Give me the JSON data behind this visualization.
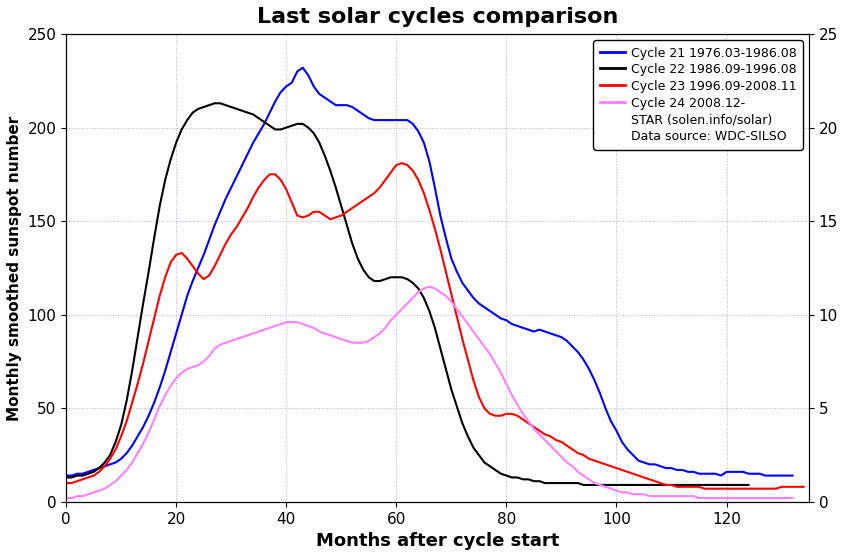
{
  "title": "Last solar cycles comparison",
  "xlabel": "Months after cycle start",
  "ylabel": "Monthly smoothed sunspot number",
  "xlim": [
    0,
    135
  ],
  "ylim": [
    0,
    250
  ],
  "ylim_right": [
    0,
    25
  ],
  "yticks_left": [
    0,
    50,
    100,
    150,
    200,
    250
  ],
  "yticks_right": [
    0,
    5,
    10,
    15,
    20,
    25
  ],
  "xticks": [
    0,
    20,
    40,
    60,
    80,
    100,
    120
  ],
  "legend_entries": [
    "Cycle 21 1976.03-1986.08",
    "Cycle 22 1986.09-1996.08",
    "Cycle 23 1996.09-2008.11",
    "Cycle 24 2008.12-"
  ],
  "legend_text_extra": [
    "STAR (solen.info/solar)",
    "Data source: WDC-SILSO"
  ],
  "line_colors": [
    "blue",
    "black",
    "red",
    "#ff80ff"
  ],
  "background_color": "#ffffff",
  "grid_color": "#aaaacc",
  "cycle21_x": [
    0,
    1,
    2,
    3,
    4,
    5,
    6,
    7,
    8,
    9,
    10,
    11,
    12,
    13,
    14,
    15,
    16,
    17,
    18,
    19,
    20,
    21,
    22,
    23,
    24,
    25,
    26,
    27,
    28,
    29,
    30,
    31,
    32,
    33,
    34,
    35,
    36,
    37,
    38,
    39,
    40,
    41,
    42,
    43,
    44,
    45,
    46,
    47,
    48,
    49,
    50,
    51,
    52,
    53,
    54,
    55,
    56,
    57,
    58,
    59,
    60,
    61,
    62,
    63,
    64,
    65,
    66,
    67,
    68,
    69,
    70,
    71,
    72,
    73,
    74,
    75,
    76,
    77,
    78,
    79,
    80,
    81,
    82,
    83,
    84,
    85,
    86,
    87,
    88,
    89,
    90,
    91,
    92,
    93,
    94,
    95,
    96,
    97,
    98,
    99,
    100,
    101,
    102,
    103,
    104,
    105,
    106,
    107,
    108,
    109,
    110,
    111,
    112,
    113,
    114,
    115,
    116,
    117,
    118,
    119,
    120,
    121,
    122,
    123,
    124,
    125,
    126,
    127,
    128,
    129,
    130,
    131,
    132
  ],
  "cycle21_y": [
    14,
    14,
    15,
    15,
    16,
    17,
    18,
    19,
    20,
    21,
    23,
    26,
    30,
    35,
    40,
    46,
    53,
    61,
    70,
    80,
    90,
    100,
    110,
    118,
    125,
    132,
    140,
    148,
    155,
    162,
    168,
    174,
    180,
    186,
    192,
    197,
    202,
    208,
    214,
    219,
    222,
    224,
    230,
    232,
    228,
    222,
    218,
    216,
    214,
    212,
    212,
    212,
    211,
    209,
    207,
    205,
    204,
    204,
    204,
    204,
    204,
    204,
    204,
    202,
    198,
    192,
    182,
    168,
    153,
    141,
    130,
    123,
    117,
    113,
    109,
    106,
    104,
    102,
    100,
    98,
    97,
    95,
    94,
    93,
    92,
    91,
    92,
    91,
    90,
    89,
    88,
    86,
    83,
    80,
    76,
    71,
    65,
    58,
    50,
    43,
    38,
    32,
    28,
    25,
    22,
    21,
    20,
    20,
    19,
    18,
    18,
    17,
    17,
    16,
    16,
    15,
    15,
    15,
    15,
    14,
    16,
    16,
    16,
    16,
    15,
    15,
    15,
    14,
    14,
    14,
    14,
    14,
    14
  ],
  "cycle22_x": [
    0,
    1,
    2,
    3,
    4,
    5,
    6,
    7,
    8,
    9,
    10,
    11,
    12,
    13,
    14,
    15,
    16,
    17,
    18,
    19,
    20,
    21,
    22,
    23,
    24,
    25,
    26,
    27,
    28,
    29,
    30,
    31,
    32,
    33,
    34,
    35,
    36,
    37,
    38,
    39,
    40,
    41,
    42,
    43,
    44,
    45,
    46,
    47,
    48,
    49,
    50,
    51,
    52,
    53,
    54,
    55,
    56,
    57,
    58,
    59,
    60,
    61,
    62,
    63,
    64,
    65,
    66,
    67,
    68,
    69,
    70,
    71,
    72,
    73,
    74,
    75,
    76,
    77,
    78,
    79,
    80,
    81,
    82,
    83,
    84,
    85,
    86,
    87,
    88,
    89,
    90,
    91,
    92,
    93,
    94,
    95,
    96,
    97,
    98,
    99,
    100,
    101,
    102,
    103,
    104,
    105,
    106,
    107,
    108,
    109,
    110,
    111,
    112,
    113,
    114,
    115,
    116,
    117,
    118,
    119,
    120,
    121,
    122,
    123,
    124
  ],
  "cycle22_y": [
    13,
    13,
    14,
    14,
    15,
    16,
    18,
    21,
    25,
    32,
    41,
    54,
    70,
    88,
    106,
    123,
    141,
    158,
    172,
    183,
    192,
    199,
    204,
    208,
    210,
    211,
    212,
    213,
    213,
    212,
    211,
    210,
    209,
    208,
    207,
    205,
    203,
    201,
    199,
    199,
    200,
    201,
    202,
    202,
    200,
    197,
    192,
    185,
    177,
    168,
    158,
    148,
    138,
    130,
    124,
    120,
    118,
    118,
    119,
    120,
    120,
    120,
    119,
    117,
    114,
    109,
    102,
    93,
    82,
    71,
    60,
    51,
    42,
    35,
    29,
    25,
    21,
    19,
    17,
    15,
    14,
    13,
    13,
    12,
    12,
    11,
    11,
    10,
    10,
    10,
    10,
    10,
    10,
    10,
    9,
    9,
    9,
    9,
    9,
    9,
    9,
    9,
    9,
    9,
    9,
    9,
    9,
    9,
    9,
    9,
    9,
    9,
    9,
    9,
    9,
    9,
    9,
    9,
    9,
    9,
    9,
    9,
    9,
    9,
    9
  ],
  "cycle23_x": [
    0,
    1,
    2,
    3,
    4,
    5,
    6,
    7,
    8,
    9,
    10,
    11,
    12,
    13,
    14,
    15,
    16,
    17,
    18,
    19,
    20,
    21,
    22,
    23,
    24,
    25,
    26,
    27,
    28,
    29,
    30,
    31,
    32,
    33,
    34,
    35,
    36,
    37,
    38,
    39,
    40,
    41,
    42,
    43,
    44,
    45,
    46,
    47,
    48,
    49,
    50,
    51,
    52,
    53,
    54,
    55,
    56,
    57,
    58,
    59,
    60,
    61,
    62,
    63,
    64,
    65,
    66,
    67,
    68,
    69,
    70,
    71,
    72,
    73,
    74,
    75,
    76,
    77,
    78,
    79,
    80,
    81,
    82,
    83,
    84,
    85,
    86,
    87,
    88,
    89,
    90,
    91,
    92,
    93,
    94,
    95,
    96,
    97,
    98,
    99,
    100,
    101,
    102,
    103,
    104,
    105,
    106,
    107,
    108,
    109,
    110,
    111,
    112,
    113,
    114,
    115,
    116,
    117,
    118,
    119,
    120,
    121,
    122,
    123,
    124,
    125,
    126,
    127,
    128,
    129,
    130,
    131,
    132,
    133,
    134
  ],
  "cycle23_y": [
    10,
    10,
    11,
    12,
    13,
    14,
    16,
    19,
    23,
    28,
    35,
    43,
    53,
    63,
    74,
    86,
    98,
    110,
    120,
    128,
    132,
    133,
    130,
    126,
    122,
    119,
    121,
    126,
    132,
    138,
    143,
    147,
    152,
    157,
    163,
    168,
    172,
    175,
    175,
    172,
    167,
    160,
    153,
    152,
    153,
    155,
    155,
    153,
    151,
    152,
    153,
    155,
    157,
    159,
    161,
    163,
    165,
    168,
    172,
    176,
    180,
    181,
    180,
    177,
    172,
    165,
    156,
    146,
    135,
    123,
    111,
    99,
    87,
    76,
    65,
    56,
    50,
    47,
    46,
    46,
    47,
    47,
    46,
    44,
    42,
    40,
    38,
    36,
    35,
    33,
    32,
    30,
    28,
    26,
    25,
    23,
    22,
    21,
    20,
    19,
    18,
    17,
    16,
    15,
    14,
    13,
    12,
    11,
    10,
    9,
    9,
    8,
    8,
    8,
    8,
    8,
    7,
    7,
    7,
    7,
    7,
    7,
    7,
    7,
    7,
    7,
    7,
    7,
    7,
    7,
    8,
    8,
    8,
    8,
    8
  ],
  "cycle24_x": [
    0,
    1,
    2,
    3,
    4,
    5,
    6,
    7,
    8,
    9,
    10,
    11,
    12,
    13,
    14,
    15,
    16,
    17,
    18,
    19,
    20,
    21,
    22,
    23,
    24,
    25,
    26,
    27,
    28,
    29,
    30,
    31,
    32,
    33,
    34,
    35,
    36,
    37,
    38,
    39,
    40,
    41,
    42,
    43,
    44,
    45,
    46,
    47,
    48,
    49,
    50,
    51,
    52,
    53,
    54,
    55,
    56,
    57,
    58,
    59,
    60,
    61,
    62,
    63,
    64,
    65,
    66,
    67,
    68,
    69,
    70,
    71,
    72,
    73,
    74,
    75,
    76,
    77,
    78,
    79,
    80,
    81,
    82,
    83,
    84,
    85,
    86,
    87,
    88,
    89,
    90,
    91,
    92,
    93,
    94,
    95,
    96,
    97,
    98,
    99,
    100,
    101,
    102,
    103,
    104,
    105,
    106,
    107,
    108,
    109,
    110,
    111,
    112,
    113,
    114,
    115,
    116,
    117,
    118,
    119,
    120,
    121,
    122,
    123,
    124,
    125,
    126,
    127,
    128,
    129,
    130,
    131,
    132
  ],
  "cycle24_y": [
    2,
    2,
    3,
    3,
    4,
    5,
    6,
    7,
    9,
    11,
    14,
    17,
    21,
    26,
    31,
    37,
    44,
    51,
    57,
    62,
    66,
    69,
    71,
    72,
    73,
    75,
    78,
    82,
    84,
    85,
    86,
    87,
    88,
    89,
    90,
    91,
    92,
    93,
    94,
    95,
    96,
    96,
    96,
    95,
    94,
    93,
    91,
    90,
    89,
    88,
    87,
    86,
    85,
    85,
    85,
    86,
    88,
    90,
    93,
    97,
    100,
    103,
    106,
    109,
    112,
    114,
    115,
    114,
    112,
    110,
    107,
    103,
    99,
    95,
    91,
    87,
    83,
    79,
    74,
    69,
    63,
    57,
    52,
    47,
    43,
    39,
    36,
    33,
    30,
    27,
    24,
    21,
    19,
    16,
    14,
    12,
    10,
    9,
    8,
    7,
    6,
    5,
    5,
    4,
    4,
    4,
    3,
    3,
    3,
    3,
    3,
    3,
    3,
    3,
    3,
    2,
    2,
    2,
    2,
    2,
    2,
    2,
    2,
    2,
    2,
    2,
    2,
    2,
    2,
    2,
    2,
    2,
    2
  ]
}
